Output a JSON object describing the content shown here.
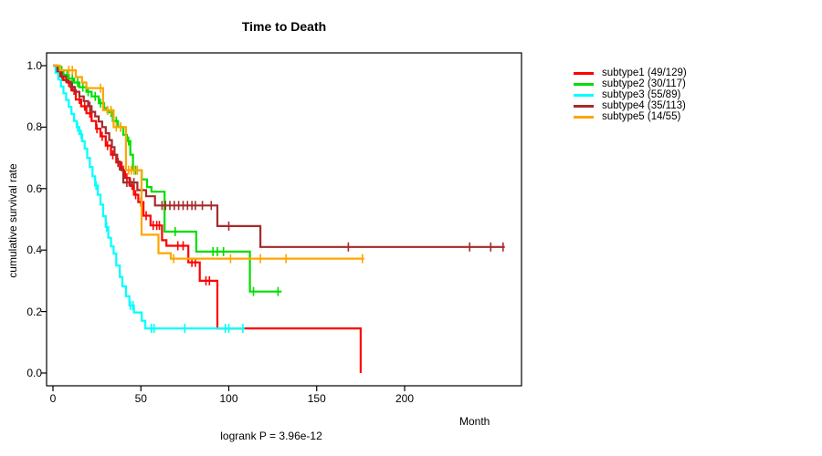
{
  "chart_data": {
    "type": "line",
    "subtype": "kaplan-meier-step-curves",
    "title": "Time to Death",
    "xlabel": "Month",
    "ylabel": "cumulative survival rate",
    "annotation": "logrank P = 3.96e-12",
    "xlim": [
      0,
      266
    ],
    "ylim": [
      0.0,
      1.0
    ],
    "grid": false,
    "legend_position": "right",
    "xticks": [
      "0",
      "50",
      "100",
      "150",
      "200"
    ],
    "xtick_values": [
      0,
      50,
      100,
      150,
      200
    ],
    "yticks": [
      "0.0",
      "0.2",
      "0.4",
      "0.6",
      "0.8",
      "1.0"
    ],
    "ytick_values": [
      0,
      0.2,
      0.4,
      0.6,
      0.8,
      1.0
    ],
    "series": [
      {
        "name": "subtype1 (49/129)",
        "label": "subtype1",
        "events": "49/129",
        "color": "#ff0000",
        "end_month": 175,
        "steps": [
          [
            0,
            1.0
          ],
          [
            2,
            0.98
          ],
          [
            4,
            0.965
          ],
          [
            6,
            0.953
          ],
          [
            8,
            0.945
          ],
          [
            10.5,
            0.92
          ],
          [
            13,
            0.89
          ],
          [
            16,
            0.868
          ],
          [
            19,
            0.845
          ],
          [
            22,
            0.82
          ],
          [
            24.5,
            0.795
          ],
          [
            27,
            0.77
          ],
          [
            30,
            0.74
          ],
          [
            33,
            0.71
          ],
          [
            36,
            0.685
          ],
          [
            39,
            0.66
          ],
          [
            41,
            0.635
          ],
          [
            43.5,
            0.61
          ],
          [
            46,
            0.58
          ],
          [
            48.5,
            0.556
          ],
          [
            51.5,
            0.512
          ],
          [
            55.5,
            0.48
          ],
          [
            62,
            0.432
          ],
          [
            64.5,
            0.414
          ],
          [
            77,
            0.36
          ],
          [
            83.5,
            0.3
          ],
          [
            93.5,
            0.145
          ],
          [
            175,
            0.0
          ]
        ],
        "censor_marks": [
          5,
          9,
          12,
          15,
          18,
          21,
          25,
          28,
          31,
          34,
          37,
          40,
          42,
          45,
          47,
          50,
          53,
          57,
          59,
          60.5,
          71,
          74,
          79,
          81,
          87,
          89
        ]
      },
      {
        "name": "subtype2 (30/117)",
        "label": "subtype2",
        "events": "30/117",
        "color": "#00dd00",
        "end_month": 130,
        "steps": [
          [
            0,
            1.0
          ],
          [
            3,
            0.985
          ],
          [
            6,
            0.97
          ],
          [
            9,
            0.958
          ],
          [
            12,
            0.945
          ],
          [
            15,
            0.93
          ],
          [
            19,
            0.915
          ],
          [
            22,
            0.9
          ],
          [
            26,
            0.878
          ],
          [
            29,
            0.862
          ],
          [
            31,
            0.848
          ],
          [
            34,
            0.82
          ],
          [
            37,
            0.8
          ],
          [
            40,
            0.775
          ],
          [
            42,
            0.755
          ],
          [
            44,
            0.71
          ],
          [
            45.5,
            0.66
          ],
          [
            50.5,
            0.63
          ],
          [
            53.5,
            0.605
          ],
          [
            56,
            0.59
          ],
          [
            63.5,
            0.46
          ],
          [
            81.5,
            0.395
          ],
          [
            112,
            0.265
          ]
        ],
        "censor_marks": [
          5,
          8,
          11,
          14,
          17,
          20,
          24,
          27,
          33,
          36,
          38.5,
          43,
          47,
          69.5,
          91,
          93.5,
          97,
          114,
          128
        ]
      },
      {
        "name": "subtype3 (55/89)",
        "label": "subtype3",
        "events": "55/89",
        "color": "#00ffff",
        "end_month": 109,
        "steps": [
          [
            0,
            1.0
          ],
          [
            1.5,
            0.977
          ],
          [
            3,
            0.955
          ],
          [
            4.5,
            0.932
          ],
          [
            6,
            0.91
          ],
          [
            7.5,
            0.888
          ],
          [
            9,
            0.866
          ],
          [
            10.5,
            0.843
          ],
          [
            12,
            0.82
          ],
          [
            13.5,
            0.8
          ],
          [
            15,
            0.777
          ],
          [
            16.5,
            0.754
          ],
          [
            18,
            0.73
          ],
          [
            19.5,
            0.7
          ],
          [
            21,
            0.67
          ],
          [
            22.5,
            0.64
          ],
          [
            24,
            0.61
          ],
          [
            25.5,
            0.58
          ],
          [
            27,
            0.548
          ],
          [
            28.5,
            0.51
          ],
          [
            30,
            0.475
          ],
          [
            31.5,
            0.44
          ],
          [
            33,
            0.412
          ],
          [
            34.5,
            0.388
          ],
          [
            36,
            0.35
          ],
          [
            38,
            0.312
          ],
          [
            39.5,
            0.282
          ],
          [
            41.5,
            0.25
          ],
          [
            43.5,
            0.22
          ],
          [
            46,
            0.197
          ],
          [
            50.5,
            0.17
          ],
          [
            52.5,
            0.145
          ]
        ],
        "censor_marks": [
          14,
          16,
          24.5,
          30.5,
          44,
          45.5,
          56,
          57.5,
          75,
          98,
          100,
          108
        ]
      },
      {
        "name": "subtype4 (35/113)",
        "label": "subtype4",
        "events": "35/113",
        "color": "#a52a2a",
        "end_month": 257,
        "steps": [
          [
            0,
            1.0
          ],
          [
            2.5,
            0.982
          ],
          [
            5,
            0.965
          ],
          [
            7.5,
            0.948
          ],
          [
            10,
            0.93
          ],
          [
            12.5,
            0.915
          ],
          [
            15,
            0.9
          ],
          [
            17.5,
            0.885
          ],
          [
            20,
            0.868
          ],
          [
            22,
            0.85
          ],
          [
            24,
            0.835
          ],
          [
            26,
            0.818
          ],
          [
            28,
            0.8
          ],
          [
            30,
            0.78
          ],
          [
            32,
            0.758
          ],
          [
            33.5,
            0.735
          ],
          [
            35,
            0.71
          ],
          [
            36.5,
            0.688
          ],
          [
            38,
            0.662
          ],
          [
            40,
            0.62
          ],
          [
            48,
            0.595
          ],
          [
            53,
            0.575
          ],
          [
            58,
            0.545
          ],
          [
            93.5,
            0.478
          ],
          [
            118,
            0.41
          ]
        ],
        "censor_marks": [
          11,
          21,
          42,
          44,
          46,
          62,
          64,
          66.5,
          69,
          71.5,
          74,
          76.5,
          79,
          81,
          85,
          90,
          100,
          168,
          237,
          249,
          256
        ]
      },
      {
        "name": "subtype5 (14/55)",
        "label": "subtype5",
        "events": "14/55",
        "color": "#ffa500",
        "end_month": 177,
        "steps": [
          [
            0,
            1.0
          ],
          [
            4,
            0.985
          ],
          [
            13,
            0.963
          ],
          [
            16.5,
            0.945
          ],
          [
            19,
            0.927
          ],
          [
            28.5,
            0.855
          ],
          [
            34.5,
            0.8
          ],
          [
            41.5,
            0.66
          ],
          [
            50.4,
            0.45
          ],
          [
            60,
            0.39
          ],
          [
            67,
            0.372
          ]
        ],
        "censor_marks": [
          9,
          11,
          27,
          31,
          33,
          36,
          38.5,
          43,
          44.5,
          46,
          48,
          68.6,
          101,
          118,
          132.5,
          176
        ]
      }
    ]
  }
}
